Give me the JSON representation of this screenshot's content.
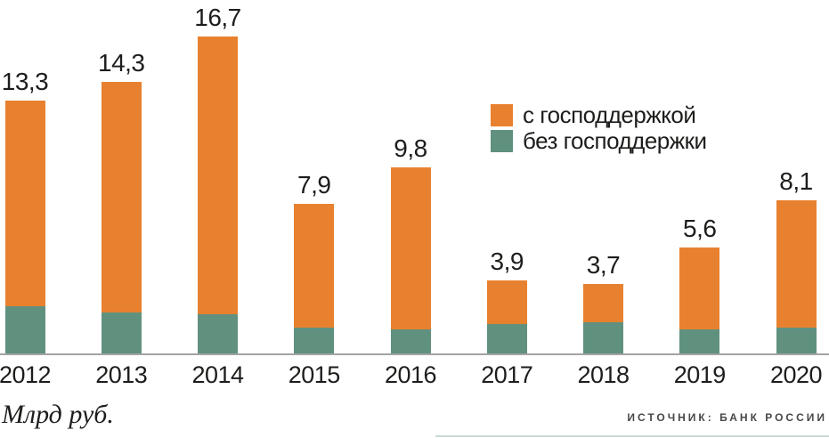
{
  "chart_data": {
    "type": "bar",
    "stacked": true,
    "categories": [
      "2012",
      "2013",
      "2014",
      "2015",
      "2016",
      "2017",
      "2018",
      "2019",
      "2020"
    ],
    "totals": [
      13.3,
      14.3,
      16.7,
      7.9,
      9.8,
      3.9,
      3.7,
      5.6,
      8.1
    ],
    "total_labels": [
      "13,3",
      "14,3",
      "16,7",
      "7,9",
      "9,8",
      "3,9",
      "3,7",
      "5,6",
      "8,1"
    ],
    "series": [
      {
        "name": "с господдержкой",
        "color": "#e8812f",
        "values": [
          10.8,
          12.1,
          14.6,
          6.5,
          8.5,
          2.3,
          2.0,
          4.3,
          6.7
        ]
      },
      {
        "name": "без господдержки",
        "color": "#60917f",
        "values": [
          2.5,
          2.2,
          2.1,
          1.4,
          1.3,
          1.6,
          1.7,
          1.3,
          1.4
        ]
      }
    ],
    "ylabel": "Млрд руб.",
    "ylim": [
      0,
      18
    ],
    "grid": false,
    "legend_position": "inside-top-right"
  },
  "footer": {
    "units_label": "Млрд руб.",
    "source_label": "ИСТОЧНИК: БАНК РОССИИ"
  },
  "colors": {
    "with_support": "#e8812f",
    "without_support": "#60917f",
    "axis": "#a3a3a3",
    "text": "#1d1d1b",
    "source_text": "#47474a"
  }
}
